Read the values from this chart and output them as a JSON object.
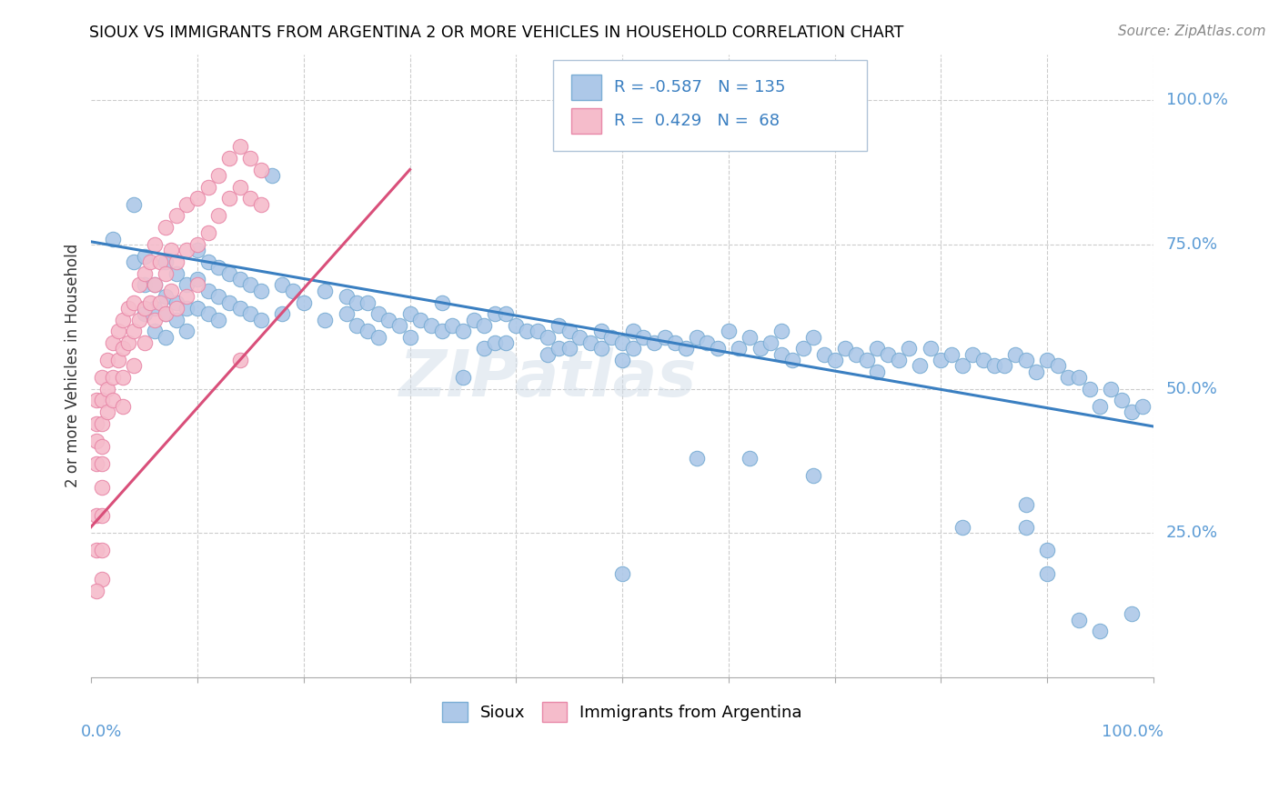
{
  "title": "SIOUX VS IMMIGRANTS FROM ARGENTINA 2 OR MORE VEHICLES IN HOUSEHOLD CORRELATION CHART",
  "source": "Source: ZipAtlas.com",
  "ylabel": "2 or more Vehicles in Household",
  "ytick_labels": [
    "25.0%",
    "50.0%",
    "75.0%",
    "100.0%"
  ],
  "ytick_values": [
    0.25,
    0.5,
    0.75,
    1.0
  ],
  "sioux_color": "#adc8e8",
  "argentina_color": "#f5bccb",
  "sioux_edge": "#7aadd4",
  "argentina_edge": "#e888a8",
  "trend_blue": "#3a7fc1",
  "trend_pink": "#d94f7a",
  "watermark_text": "ZIPatlas",
  "blue_trend": [
    0.0,
    0.755,
    1.0,
    0.435
  ],
  "pink_trend": [
    -0.02,
    0.22,
    0.3,
    0.88
  ],
  "sioux_points": [
    [
      0.02,
      0.76
    ],
    [
      0.04,
      0.82
    ],
    [
      0.04,
      0.72
    ],
    [
      0.05,
      0.73
    ],
    [
      0.05,
      0.68
    ],
    [
      0.05,
      0.63
    ],
    [
      0.06,
      0.68
    ],
    [
      0.06,
      0.64
    ],
    [
      0.06,
      0.6
    ],
    [
      0.07,
      0.72
    ],
    [
      0.07,
      0.66
    ],
    [
      0.07,
      0.63
    ],
    [
      0.07,
      0.59
    ],
    [
      0.08,
      0.7
    ],
    [
      0.08,
      0.65
    ],
    [
      0.08,
      0.62
    ],
    [
      0.09,
      0.68
    ],
    [
      0.09,
      0.64
    ],
    [
      0.09,
      0.6
    ],
    [
      0.1,
      0.74
    ],
    [
      0.1,
      0.69
    ],
    [
      0.1,
      0.64
    ],
    [
      0.11,
      0.72
    ],
    [
      0.11,
      0.67
    ],
    [
      0.11,
      0.63
    ],
    [
      0.12,
      0.71
    ],
    [
      0.12,
      0.66
    ],
    [
      0.12,
      0.62
    ],
    [
      0.13,
      0.7
    ],
    [
      0.13,
      0.65
    ],
    [
      0.14,
      0.69
    ],
    [
      0.14,
      0.64
    ],
    [
      0.15,
      0.68
    ],
    [
      0.15,
      0.63
    ],
    [
      0.16,
      0.67
    ],
    [
      0.16,
      0.62
    ],
    [
      0.17,
      0.87
    ],
    [
      0.18,
      0.68
    ],
    [
      0.18,
      0.63
    ],
    [
      0.19,
      0.67
    ],
    [
      0.2,
      0.65
    ],
    [
      0.22,
      0.67
    ],
    [
      0.22,
      0.62
    ],
    [
      0.24,
      0.66
    ],
    [
      0.24,
      0.63
    ],
    [
      0.25,
      0.65
    ],
    [
      0.25,
      0.61
    ],
    [
      0.26,
      0.65
    ],
    [
      0.26,
      0.6
    ],
    [
      0.27,
      0.63
    ],
    [
      0.27,
      0.59
    ],
    [
      0.28,
      0.62
    ],
    [
      0.29,
      0.61
    ],
    [
      0.3,
      0.63
    ],
    [
      0.3,
      0.59
    ],
    [
      0.31,
      0.62
    ],
    [
      0.32,
      0.61
    ],
    [
      0.33,
      0.65
    ],
    [
      0.33,
      0.6
    ],
    [
      0.34,
      0.61
    ],
    [
      0.35,
      0.6
    ],
    [
      0.36,
      0.62
    ],
    [
      0.37,
      0.61
    ],
    [
      0.37,
      0.57
    ],
    [
      0.38,
      0.63
    ],
    [
      0.38,
      0.58
    ],
    [
      0.39,
      0.63
    ],
    [
      0.39,
      0.58
    ],
    [
      0.4,
      0.61
    ],
    [
      0.41,
      0.6
    ],
    [
      0.42,
      0.6
    ],
    [
      0.43,
      0.59
    ],
    [
      0.43,
      0.56
    ],
    [
      0.44,
      0.61
    ],
    [
      0.44,
      0.57
    ],
    [
      0.45,
      0.6
    ],
    [
      0.45,
      0.57
    ],
    [
      0.46,
      0.59
    ],
    [
      0.47,
      0.58
    ],
    [
      0.48,
      0.6
    ],
    [
      0.48,
      0.57
    ],
    [
      0.49,
      0.59
    ],
    [
      0.5,
      0.58
    ],
    [
      0.5,
      0.55
    ],
    [
      0.51,
      0.6
    ],
    [
      0.51,
      0.57
    ],
    [
      0.52,
      0.59
    ],
    [
      0.53,
      0.58
    ],
    [
      0.54,
      0.59
    ],
    [
      0.55,
      0.58
    ],
    [
      0.56,
      0.57
    ],
    [
      0.57,
      0.59
    ],
    [
      0.58,
      0.58
    ],
    [
      0.59,
      0.57
    ],
    [
      0.6,
      0.6
    ],
    [
      0.61,
      0.57
    ],
    [
      0.62,
      0.59
    ],
    [
      0.63,
      0.57
    ],
    [
      0.64,
      0.58
    ],
    [
      0.65,
      0.6
    ],
    [
      0.65,
      0.56
    ],
    [
      0.66,
      0.55
    ],
    [
      0.67,
      0.57
    ],
    [
      0.68,
      0.59
    ],
    [
      0.69,
      0.56
    ],
    [
      0.7,
      0.55
    ],
    [
      0.71,
      0.57
    ],
    [
      0.72,
      0.56
    ],
    [
      0.73,
      0.55
    ],
    [
      0.74,
      0.57
    ],
    [
      0.74,
      0.53
    ],
    [
      0.75,
      0.56
    ],
    [
      0.76,
      0.55
    ],
    [
      0.77,
      0.57
    ],
    [
      0.78,
      0.54
    ],
    [
      0.79,
      0.57
    ],
    [
      0.8,
      0.55
    ],
    [
      0.81,
      0.56
    ],
    [
      0.82,
      0.54
    ],
    [
      0.83,
      0.56
    ],
    [
      0.84,
      0.55
    ],
    [
      0.85,
      0.54
    ],
    [
      0.86,
      0.54
    ],
    [
      0.87,
      0.56
    ],
    [
      0.88,
      0.55
    ],
    [
      0.89,
      0.53
    ],
    [
      0.9,
      0.55
    ],
    [
      0.91,
      0.54
    ],
    [
      0.92,
      0.52
    ],
    [
      0.93,
      0.52
    ],
    [
      0.94,
      0.5
    ],
    [
      0.95,
      0.47
    ],
    [
      0.96,
      0.5
    ],
    [
      0.97,
      0.48
    ],
    [
      0.98,
      0.46
    ],
    [
      0.99,
      0.47
    ],
    [
      0.35,
      0.52
    ],
    [
      0.5,
      0.18
    ],
    [
      0.57,
      0.38
    ],
    [
      0.62,
      0.38
    ],
    [
      0.68,
      0.35
    ],
    [
      0.82,
      0.26
    ],
    [
      0.88,
      0.26
    ],
    [
      0.88,
      0.3
    ],
    [
      0.9,
      0.22
    ],
    [
      0.9,
      0.18
    ],
    [
      0.93,
      0.1
    ],
    [
      0.95,
      0.08
    ],
    [
      0.98,
      0.11
    ]
  ],
  "argentina_points": [
    [
      0.005,
      0.48
    ],
    [
      0.005,
      0.44
    ],
    [
      0.005,
      0.41
    ],
    [
      0.005,
      0.37
    ],
    [
      0.01,
      0.52
    ],
    [
      0.01,
      0.48
    ],
    [
      0.01,
      0.44
    ],
    [
      0.01,
      0.4
    ],
    [
      0.01,
      0.37
    ],
    [
      0.01,
      0.33
    ],
    [
      0.015,
      0.55
    ],
    [
      0.015,
      0.5
    ],
    [
      0.015,
      0.46
    ],
    [
      0.02,
      0.58
    ],
    [
      0.02,
      0.52
    ],
    [
      0.02,
      0.48
    ],
    [
      0.025,
      0.6
    ],
    [
      0.025,
      0.55
    ],
    [
      0.03,
      0.62
    ],
    [
      0.03,
      0.57
    ],
    [
      0.03,
      0.52
    ],
    [
      0.03,
      0.47
    ],
    [
      0.035,
      0.64
    ],
    [
      0.035,
      0.58
    ],
    [
      0.04,
      0.65
    ],
    [
      0.04,
      0.6
    ],
    [
      0.04,
      0.54
    ],
    [
      0.045,
      0.68
    ],
    [
      0.045,
      0.62
    ],
    [
      0.05,
      0.7
    ],
    [
      0.05,
      0.64
    ],
    [
      0.05,
      0.58
    ],
    [
      0.055,
      0.72
    ],
    [
      0.055,
      0.65
    ],
    [
      0.06,
      0.75
    ],
    [
      0.06,
      0.68
    ],
    [
      0.06,
      0.62
    ],
    [
      0.065,
      0.72
    ],
    [
      0.065,
      0.65
    ],
    [
      0.07,
      0.78
    ],
    [
      0.07,
      0.7
    ],
    [
      0.07,
      0.63
    ],
    [
      0.075,
      0.74
    ],
    [
      0.075,
      0.67
    ],
    [
      0.08,
      0.8
    ],
    [
      0.08,
      0.72
    ],
    [
      0.08,
      0.64
    ],
    [
      0.09,
      0.82
    ],
    [
      0.09,
      0.74
    ],
    [
      0.09,
      0.66
    ],
    [
      0.1,
      0.83
    ],
    [
      0.1,
      0.75
    ],
    [
      0.1,
      0.68
    ],
    [
      0.11,
      0.85
    ],
    [
      0.11,
      0.77
    ],
    [
      0.12,
      0.87
    ],
    [
      0.12,
      0.8
    ],
    [
      0.13,
      0.9
    ],
    [
      0.13,
      0.83
    ],
    [
      0.14,
      0.92
    ],
    [
      0.14,
      0.85
    ],
    [
      0.15,
      0.9
    ],
    [
      0.15,
      0.83
    ],
    [
      0.16,
      0.88
    ],
    [
      0.16,
      0.82
    ],
    [
      0.005,
      0.28
    ],
    [
      0.005,
      0.22
    ],
    [
      0.01,
      0.28
    ],
    [
      0.01,
      0.22
    ],
    [
      0.01,
      0.17
    ],
    [
      0.005,
      0.15
    ],
    [
      0.14,
      0.55
    ]
  ]
}
